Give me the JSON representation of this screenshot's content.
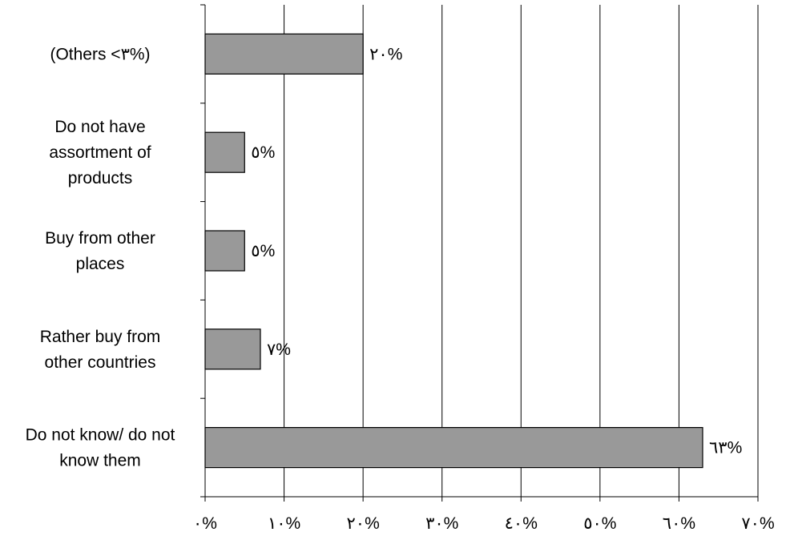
{
  "chart_data": {
    "type": "bar",
    "orientation": "horizontal",
    "categories": [
      "(Others <٣%)",
      "Do not have assortment of products",
      "Buy from other places",
      "Rather buy from other countries",
      "Do not know/ do not know them"
    ],
    "category_lines": [
      [
        "(Others <٣%)"
      ],
      [
        "Do not have",
        "assortment of",
        "products"
      ],
      [
        "Buy from other",
        "places"
      ],
      [
        "Rather buy from",
        "other countries"
      ],
      [
        "Do not know/ do not",
        "know them"
      ]
    ],
    "values": [
      20,
      5,
      5,
      7,
      63
    ],
    "data_labels": [
      "٢٠%",
      "٥%",
      "٥%",
      "٧%",
      "٦٣%"
    ],
    "xlim": [
      0,
      70
    ],
    "x_ticks": [
      0,
      10,
      20,
      30,
      40,
      50,
      60,
      70
    ],
    "x_tick_labels": [
      "٠%",
      "١٠%",
      "٢٠%",
      "٣٠%",
      "٤٠%",
      "٥٠%",
      "٦٠%",
      "٧٠%"
    ],
    "grid": "vertical",
    "colors": {
      "bar_fill": "#999999",
      "bar_stroke": "#000000",
      "grid": "#000000",
      "background": "#ffffff"
    },
    "title": "",
    "xlabel": "",
    "ylabel": ""
  }
}
